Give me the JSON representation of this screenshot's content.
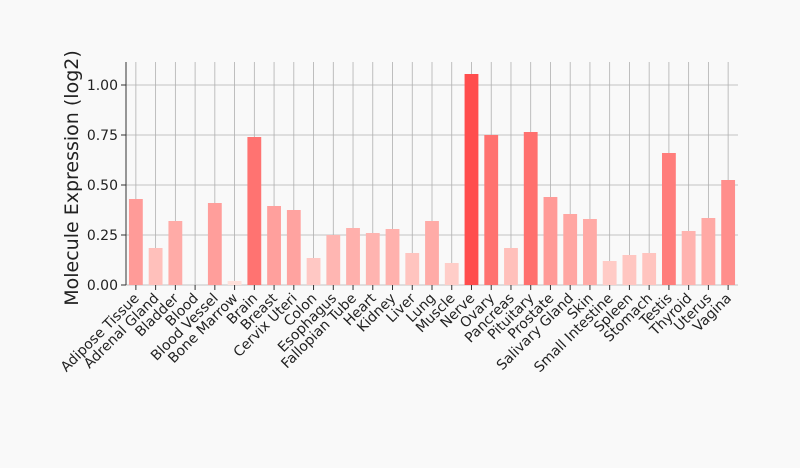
{
  "chart_data": {
    "type": "bar",
    "title": "",
    "xlabel": "",
    "ylabel": "Molecule Expression (log2)",
    "ylim": [
      0,
      1.1
    ],
    "yticks": [
      "0.00",
      "0.25",
      "0.50",
      "0.75",
      "1.00"
    ],
    "grid": true,
    "categories": [
      "Adipose Tissue",
      "Adrenal Gland",
      "Bladder",
      "Blood",
      "Blood Vessel",
      "Bone Marrow",
      "Brain",
      "Breast",
      "Cervix Uteri",
      "Colon",
      "Esophagus",
      "Fallopian Tube",
      "Heart",
      "Kidney",
      "Liver",
      "Lung",
      "Muscle",
      "Nerve",
      "Ovary",
      "Pancreas",
      "Pituitary",
      "Prostate",
      "Salivary Gland",
      "Skin",
      "Small Intestine",
      "Spleen",
      "Stomach",
      "Testis",
      "Thyroid",
      "Uterus",
      "Vagina"
    ],
    "values": [
      0.43,
      0.185,
      0.32,
      0.0,
      0.41,
      0.02,
      0.74,
      0.395,
      0.375,
      0.135,
      0.25,
      0.285,
      0.26,
      0.28,
      0.16,
      0.32,
      0.11,
      1.055,
      0.75,
      0.185,
      0.765,
      0.44,
      0.355,
      0.33,
      0.12,
      0.15,
      0.16,
      0.66,
      0.27,
      0.335,
      0.525
    ],
    "colors": {
      "max": "#ff4d4d",
      "min": "#ffe6e0",
      "background": "#f9f9f9",
      "grid": "#b0b0b0",
      "text": "#222222"
    }
  }
}
